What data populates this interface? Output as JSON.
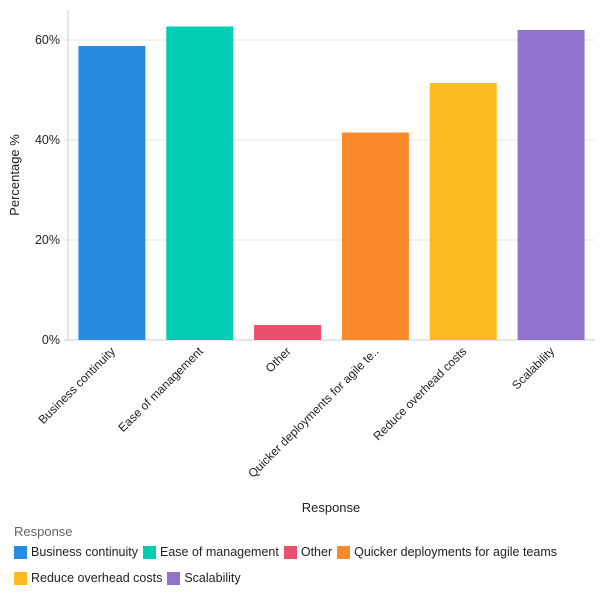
{
  "chart_data": {
    "type": "bar",
    "categories": [
      "Business continuity",
      "Ease of management",
      "Other",
      "Quicker deployments for agile teams",
      "Reduce overhead costs",
      "Scalability"
    ],
    "tick_labels": [
      "Business continuity",
      "Ease of management",
      "Other",
      "Quicker deployments for agile te..",
      "Reduce overhead costs",
      "Scalability"
    ],
    "values": [
      58.8,
      62.7,
      3.0,
      41.5,
      51.4,
      62.0
    ],
    "colors": [
      "#278ce2",
      "#00cdb4",
      "#e8506e",
      "#f98a2b",
      "#fdbb21",
      "#9174cd"
    ],
    "xlabel": "Response",
    "ylabel": "Percentage %",
    "ylim": [
      0,
      66
    ],
    "yticks": [
      "0%",
      "20%",
      "40%",
      "60%"
    ],
    "ytick_values": [
      0,
      20,
      40,
      60
    ],
    "grid": true,
    "legend": {
      "title": "Response",
      "placement": "bottom"
    }
  }
}
